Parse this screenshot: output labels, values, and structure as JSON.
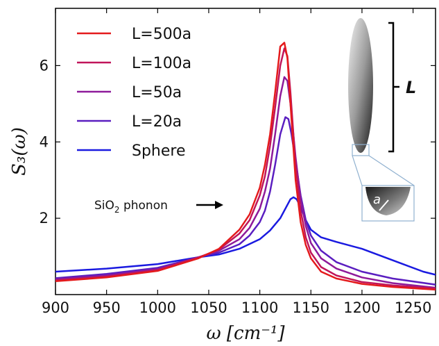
{
  "chart_data": {
    "type": "line",
    "xlabel": "ω [cm⁻¹]",
    "ylabel": "S₃(ω)",
    "xlim": [
      900,
      1272
    ],
    "ylim": [
      0.0,
      7.5
    ],
    "x_ticks": [
      900,
      950,
      1000,
      1050,
      1100,
      1150,
      1200,
      1250
    ],
    "y_ticks": [
      2,
      4,
      6
    ],
    "grid": false,
    "legend_position": "top-left",
    "series": [
      {
        "name": "L=500a",
        "color": "#e41a1c",
        "x": [
          900,
          950,
          1000,
          1040,
          1060,
          1080,
          1090,
          1100,
          1105,
          1110,
          1115,
          1120,
          1124,
          1127,
          1130,
          1135,
          1140,
          1145,
          1150,
          1160,
          1175,
          1200,
          1230,
          1272
        ],
        "y": [
          0.35,
          0.45,
          0.62,
          0.95,
          1.2,
          1.7,
          2.1,
          2.8,
          3.4,
          4.2,
          5.3,
          6.5,
          6.6,
          6.2,
          5.0,
          3.0,
          1.9,
          1.3,
          0.95,
          0.6,
          0.42,
          0.28,
          0.2,
          0.13
        ]
      },
      {
        "name": "L=100a",
        "color": "#c0155a",
        "x": [
          900,
          950,
          1000,
          1040,
          1060,
          1080,
          1090,
          1100,
          1105,
          1110,
          1115,
          1120,
          1124,
          1127,
          1130,
          1135,
          1140,
          1145,
          1150,
          1160,
          1175,
          1200,
          1230,
          1272
        ],
        "y": [
          0.37,
          0.47,
          0.64,
          0.97,
          1.18,
          1.6,
          1.95,
          2.6,
          3.1,
          3.9,
          4.9,
          6.0,
          6.45,
          6.25,
          5.3,
          3.4,
          2.2,
          1.5,
          1.1,
          0.72,
          0.5,
          0.33,
          0.24,
          0.16
        ]
      },
      {
        "name": "L=50a",
        "color": "#8e1a9a",
        "x": [
          900,
          950,
          1000,
          1040,
          1060,
          1080,
          1090,
          1100,
          1105,
          1110,
          1115,
          1120,
          1124,
          1127,
          1130,
          1135,
          1140,
          1145,
          1150,
          1160,
          1175,
          1200,
          1230,
          1272
        ],
        "y": [
          0.4,
          0.5,
          0.67,
          0.98,
          1.15,
          1.45,
          1.75,
          2.25,
          2.7,
          3.3,
          4.2,
          5.2,
          5.7,
          5.6,
          5.0,
          3.6,
          2.5,
          1.8,
          1.35,
          0.95,
          0.68,
          0.45,
          0.3,
          0.18
        ]
      },
      {
        "name": "L=20a",
        "color": "#5a1ec0",
        "x": [
          900,
          950,
          1000,
          1040,
          1060,
          1080,
          1090,
          1100,
          1105,
          1110,
          1115,
          1120,
          1125,
          1128,
          1131,
          1135,
          1140,
          1145,
          1150,
          1160,
          1175,
          1200,
          1230,
          1272
        ],
        "y": [
          0.43,
          0.54,
          0.7,
          0.98,
          1.1,
          1.32,
          1.55,
          1.9,
          2.2,
          2.7,
          3.4,
          4.2,
          4.65,
          4.6,
          4.2,
          3.5,
          2.6,
          1.95,
          1.55,
          1.15,
          0.85,
          0.6,
          0.42,
          0.26
        ]
      },
      {
        "name": "Sphere",
        "color": "#1a1ae0",
        "x": [
          900,
          950,
          1000,
          1040,
          1060,
          1080,
          1100,
          1110,
          1120,
          1126,
          1130,
          1133,
          1136,
          1140,
          1145,
          1150,
          1160,
          1175,
          1200,
          1220,
          1240,
          1260,
          1272
        ],
        "y": [
          0.6,
          0.68,
          0.8,
          0.98,
          1.05,
          1.2,
          1.45,
          1.68,
          2.0,
          2.3,
          2.5,
          2.55,
          2.5,
          2.3,
          1.95,
          1.7,
          1.5,
          1.38,
          1.2,
          1.0,
          0.8,
          0.6,
          0.52
        ]
      }
    ],
    "annotations": [
      {
        "text": "SiO₂ phonon",
        "base": "SiO",
        "subscript": "2",
        "rest": " phonon",
        "arrow_to": "right"
      }
    ],
    "inset": {
      "length_label": "L",
      "radius_label": "a"
    }
  }
}
